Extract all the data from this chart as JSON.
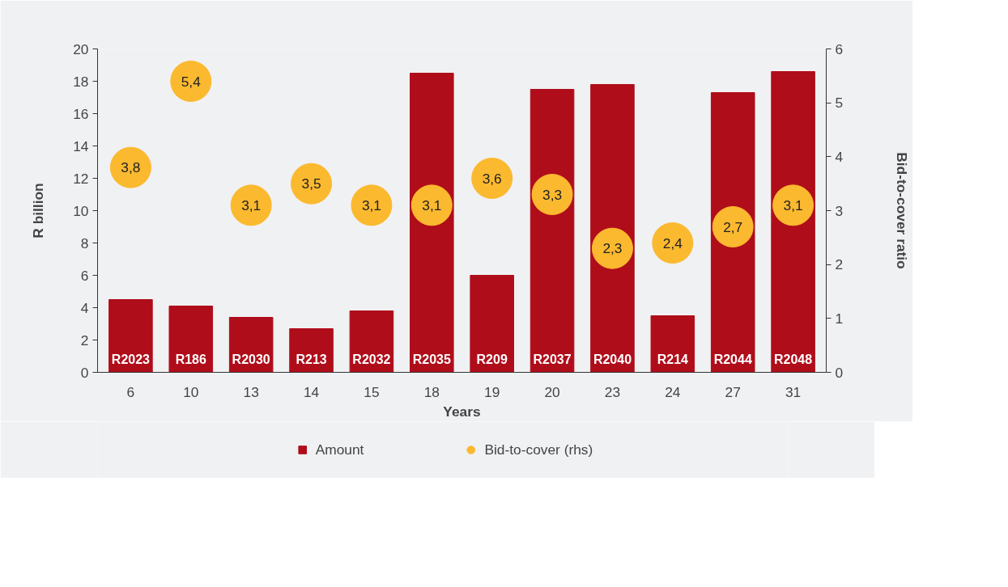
{
  "chart_data": {
    "type": "bar",
    "xlabel": "Years",
    "ylabel": "R billion",
    "y2label": "Bid-to-cover ratio",
    "categories": [
      "6",
      "10",
      "13",
      "14",
      "15",
      "18",
      "19",
      "20",
      "23",
      "24",
      "27",
      "31"
    ],
    "series": [
      {
        "name": "Amount",
        "color": "#b00d1a",
        "values": [
          4.5,
          4.1,
          3.4,
          2.7,
          3.8,
          18.5,
          6.0,
          17.5,
          17.8,
          3.5,
          17.3,
          18.6
        ]
      },
      {
        "name": "Bid-to-cover (rhs)",
        "type": "scatter",
        "axis": "y2",
        "marker": "circle",
        "color": "#fbb92f",
        "values": [
          3.8,
          5.4,
          3.1,
          3.5,
          3.1,
          3.1,
          3.6,
          3.3,
          2.3,
          2.4,
          2.7,
          3.1
        ],
        "value_labels": [
          "3,8",
          "5,4",
          "3,1",
          "3,5",
          "3,1",
          "3,1",
          "3,6",
          "3,3",
          "2,3",
          "2,4",
          "2,7",
          "3,1"
        ]
      }
    ],
    "ylim": [
      0,
      20
    ],
    "yticks": [
      0,
      2,
      4,
      6,
      8,
      10,
      12,
      14,
      16,
      18,
      20
    ],
    "y2lim": [
      0,
      6
    ],
    "y2ticks": [
      0,
      1,
      2,
      3,
      4,
      5,
      6
    ],
    "grid": false,
    "legend": "bottom",
    "annotations": [
      {
        "text": "R2023",
        "x": "6",
        "y": 0
      },
      {
        "text": "R186",
        "x": "10",
        "y": 0
      },
      {
        "text": "R2030",
        "x": "13",
        "y": 0
      },
      {
        "text": "R213",
        "x": "14",
        "y": 0
      },
      {
        "text": "R2032",
        "x": "15",
        "y": 0
      },
      {
        "text": "R2035",
        "x": "18",
        "y": 0
      },
      {
        "text": "R209",
        "x": "19",
        "y": 0
      },
      {
        "text": "R2037",
        "x": "20",
        "y": 0
      },
      {
        "text": "R2040",
        "x": "23",
        "y": 0
      },
      {
        "text": "R214",
        "x": "24",
        "y": 0
      },
      {
        "text": "R2044",
        "x": "27",
        "y": 0
      },
      {
        "text": "R2048",
        "x": "31",
        "y": 0
      }
    ]
  }
}
